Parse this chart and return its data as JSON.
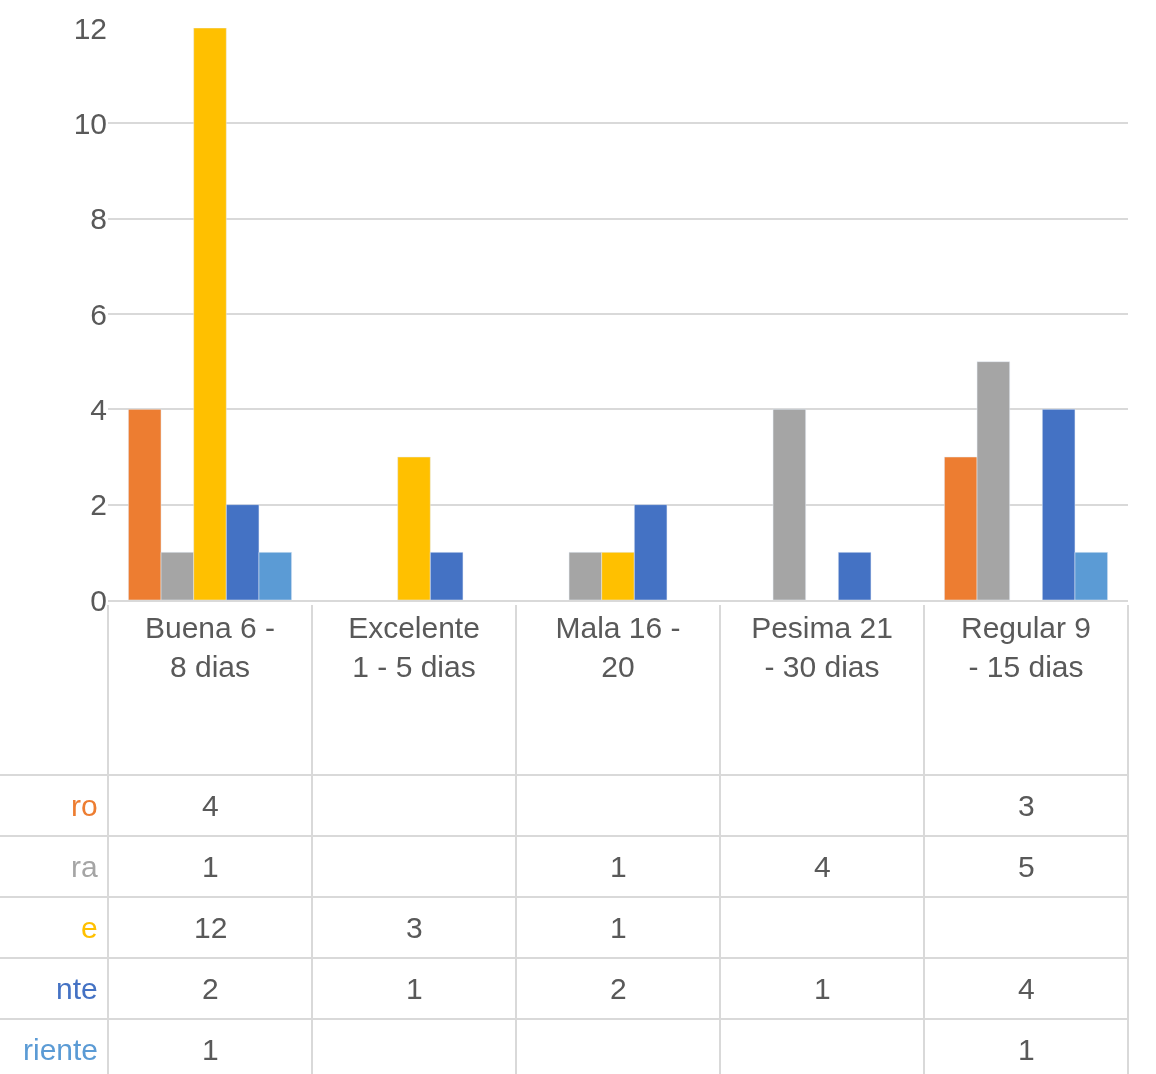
{
  "chart_data": {
    "type": "bar",
    "categories": [
      "Buena 6 - 8 dias",
      "Excelente 1 - 5 dias",
      "Mala 16 - 20",
      "Pesima 21 - 30 dias",
      "Regular 9 - 15 dias"
    ],
    "series": [
      {
        "name": "ro",
        "color": "#ed7d31",
        "values": [
          4,
          null,
          null,
          null,
          3
        ]
      },
      {
        "name": "ra",
        "color": "#a5a5a5",
        "values": [
          1,
          null,
          1,
          4,
          5
        ]
      },
      {
        "name": "e",
        "color": "#ffc000",
        "values": [
          12,
          3,
          1,
          null,
          null
        ]
      },
      {
        "name": "nte",
        "color": "#4472c4",
        "values": [
          2,
          1,
          2,
          1,
          4
        ]
      },
      {
        "name": "riente",
        "color": "#5b9bd5",
        "values": [
          1,
          null,
          null,
          null,
          1
        ]
      }
    ],
    "ylim": [
      0,
      12
    ],
    "yticks": [
      0,
      2,
      4,
      6,
      8,
      10,
      12
    ],
    "grid": "y",
    "legend": false,
    "data_labels": true
  }
}
